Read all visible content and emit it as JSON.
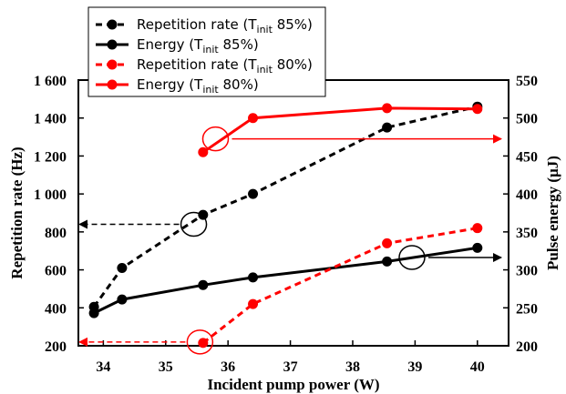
{
  "chart_data": {
    "type": "line",
    "xlabel": "Incident pump power (W)",
    "ylabel_left": "Repetition rate (Hz)",
    "ylabel_right": "Pulse energy (µJ)",
    "xlim": [
      33.6,
      40.5
    ],
    "ylim_left": [
      200,
      1600
    ],
    "ylim_right": [
      200,
      550
    ],
    "x_ticks": [
      "34",
      "35",
      "36",
      "37",
      "38",
      "39",
      "40"
    ],
    "y_left_ticks": [
      "200",
      "400",
      "600",
      "800",
      "1 000",
      "1 200",
      "1 400",
      "1 600"
    ],
    "y_right_ticks": [
      "200",
      "250",
      "300",
      "350",
      "400",
      "450",
      "500",
      "550"
    ],
    "legend": [
      {
        "pre": "Repetition rate (T",
        "sub": "init",
        "post": " 85%)",
        "color": "#000000",
        "dashed": true
      },
      {
        "pre": "Energy (T",
        "sub": "init",
        "post": " 85%)",
        "color": "#000000",
        "dashed": false
      },
      {
        "pre": "Repetition rate (T",
        "sub": "init",
        "post": " 80%)",
        "color": "#ff0000",
        "dashed": true
      },
      {
        "pre": "Energy (T",
        "sub": "init",
        "post": " 80%)",
        "color": "#ff0000",
        "dashed": false
      }
    ],
    "series": [
      {
        "name": "Repetition rate (Tinit 85%)",
        "axis": "left",
        "color": "#000000",
        "dashed": true,
        "x": [
          33.85,
          34.3,
          35.6,
          36.4,
          38.55,
          40.0
        ],
        "y": [
          405,
          610,
          890,
          1000,
          1350,
          1460
        ]
      },
      {
        "name": "Energy (Tinit 85%)",
        "axis": "right",
        "color": "#000000",
        "dashed": false,
        "x": [
          33.85,
          34.3,
          35.6,
          36.4,
          38.55,
          40.0
        ],
        "y": [
          243,
          261,
          280,
          290,
          311,
          329
        ]
      },
      {
        "name": "Repetition rate (Tinit 80%)",
        "axis": "left",
        "color": "#ff0000",
        "dashed": true,
        "x": [
          35.6,
          36.4,
          38.55,
          40.0
        ],
        "y": [
          215,
          420,
          740,
          820
        ]
      },
      {
        "name": "Energy (Tinit 80%)",
        "axis": "right",
        "color": "#ff0000",
        "dashed": false,
        "x": [
          35.6,
          36.4,
          38.55,
          40.0
        ],
        "y": [
          455,
          500,
          513,
          512
        ]
      }
    ],
    "annotations": [
      {
        "color": "#000000",
        "at": [
          35.45,
          840
        ],
        "axis": "left",
        "points_to": "left"
      },
      {
        "color": "#ff0000",
        "at": [
          35.55,
          220
        ],
        "axis": "left",
        "points_to": "left"
      },
      {
        "color": "#000000",
        "at": [
          38.95,
          665
        ],
        "axis": "left",
        "points_to": "right"
      },
      {
        "color": "#ff0000",
        "at": [
          35.8,
          1290
        ],
        "axis": "left",
        "points_to": "right"
      }
    ],
    "grid": false,
    "legend_position": "top-left"
  }
}
